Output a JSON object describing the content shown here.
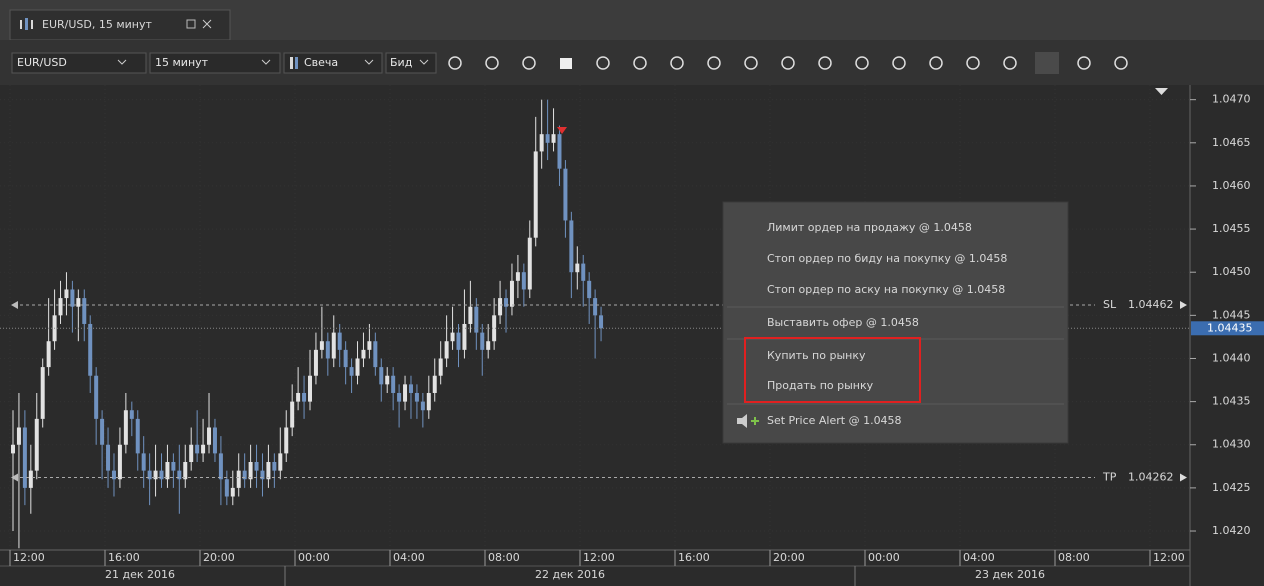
{
  "tab": {
    "title": "EUR/USD, 15 минут"
  },
  "toolbar": {
    "symbol": "EUR/USD",
    "period": "15 минут",
    "chart_type": "Свеча",
    "price_side": "Бид"
  },
  "chart": {
    "type": "candlestick",
    "up_color": "#e2e2e2",
    "down_color": "#7092c0",
    "ylim": [
      1.04178,
      1.04717
    ],
    "yticks": [
      {
        "value": 1.042,
        "label": "1.0420"
      },
      1.0425,
      {
        "value": 1.043,
        "label": "1.0430"
      },
      1.0435,
      {
        "value": 1.044,
        "label": "1.0440"
      },
      1.0445,
      {
        "value": 1.045,
        "label": "1.0450"
      },
      1.0455,
      {
        "value": 1.046,
        "label": "1.0460"
      },
      1.0465,
      {
        "value": 1.047,
        "label": "1.0470"
      }
    ],
    "candles": [
      [
        1.0429,
        1.0434,
        1.042,
        1.043
      ],
      [
        1.043,
        1.0436,
        1.0418,
        1.0432
      ],
      [
        1.0432,
        1.0434,
        1.0423,
        1.0425
      ],
      [
        1.0425,
        1.043,
        1.0422,
        1.0427
      ],
      [
        1.0427,
        1.0436,
        1.0426,
        1.0433
      ],
      [
        1.0433,
        1.044,
        1.0432,
        1.0439
      ],
      [
        1.0439,
        1.0447,
        1.0438,
        1.0442
      ],
      [
        1.0442,
        1.0448,
        1.0441,
        1.0445
      ],
      [
        1.0445,
        1.0449,
        1.0444,
        1.0447
      ],
      [
        1.0447,
        1.045,
        1.0445,
        1.0448
      ],
      [
        1.0448,
        1.0449,
        1.0443,
        1.0446
      ],
      [
        1.0446,
        1.0448,
        1.0442,
        1.0447
      ],
      [
        1.0447,
        1.0448,
        1.0442,
        1.0444
      ],
      [
        1.0444,
        1.0445,
        1.0436,
        1.0438
      ],
      [
        1.0438,
        1.0439,
        1.043,
        1.0433
      ],
      [
        1.0433,
        1.0434,
        1.0426,
        1.043
      ],
      [
        1.043,
        1.0432,
        1.0425,
        1.0427
      ],
      [
        1.0427,
        1.0429,
        1.0424,
        1.0426
      ],
      [
        1.0426,
        1.0432,
        1.0425,
        1.043
      ],
      [
        1.043,
        1.0436,
        1.0429,
        1.0434
      ],
      [
        1.0434,
        1.0435,
        1.0431,
        1.0433
      ],
      [
        1.0433,
        1.0434,
        1.0427,
        1.0429
      ],
      [
        1.0429,
        1.0431,
        1.0425,
        1.0427
      ],
      [
        1.0427,
        1.0429,
        1.0423,
        1.0426
      ],
      [
        1.0426,
        1.043,
        1.0424,
        1.0427
      ],
      [
        1.0427,
        1.0429,
        1.0425,
        1.0426
      ],
      [
        1.0426,
        1.043,
        1.0425,
        1.0428
      ],
      [
        1.0428,
        1.0429,
        1.0425,
        1.0427
      ],
      [
        1.0427,
        1.043,
        1.0422,
        1.0426
      ],
      [
        1.0426,
        1.043,
        1.0425,
        1.0428
      ],
      [
        1.0428,
        1.0432,
        1.0427,
        1.043
      ],
      [
        1.043,
        1.0434,
        1.0428,
        1.0429
      ],
      [
        1.0429,
        1.0433,
        1.0428,
        1.043
      ],
      [
        1.043,
        1.0436,
        1.0429,
        1.0432
      ],
      [
        1.0432,
        1.0433,
        1.0428,
        1.0429
      ],
      [
        1.0429,
        1.0431,
        1.0423,
        1.0426
      ],
      [
        1.0426,
        1.0427,
        1.0423,
        1.0424
      ],
      [
        1.0424,
        1.0427,
        1.0423,
        1.0425
      ],
      [
        1.0425,
        1.0429,
        1.0424,
        1.0427
      ],
      [
        1.0427,
        1.0429,
        1.0425,
        1.0426
      ],
      [
        1.0426,
        1.043,
        1.0425,
        1.0428
      ],
      [
        1.0428,
        1.043,
        1.0425,
        1.0427
      ],
      [
        1.0427,
        1.0429,
        1.0424,
        1.0426
      ],
      [
        1.0426,
        1.043,
        1.0425,
        1.0428
      ],
      [
        1.0428,
        1.0429,
        1.0425,
        1.0427
      ],
      [
        1.0427,
        1.0432,
        1.0426,
        1.0429
      ],
      [
        1.0429,
        1.0434,
        1.0428,
        1.0432
      ],
      [
        1.0432,
        1.0437,
        1.0431,
        1.0435
      ],
      [
        1.0435,
        1.0439,
        1.0434,
        1.0436
      ],
      [
        1.0436,
        1.0438,
        1.0433,
        1.0435
      ],
      [
        1.0435,
        1.0441,
        1.0434,
        1.0438
      ],
      [
        1.0438,
        1.0443,
        1.0437,
        1.0441
      ],
      [
        1.0441,
        1.0446,
        1.044,
        1.0442
      ],
      [
        1.0442,
        1.0443,
        1.0438,
        1.044
      ],
      [
        1.044,
        1.0445,
        1.0439,
        1.0443
      ],
      [
        1.0443,
        1.0444,
        1.0439,
        1.0441
      ],
      [
        1.0441,
        1.0442,
        1.0437,
        1.0439
      ],
      [
        1.0439,
        1.044,
        1.0436,
        1.0438
      ],
      [
        1.0438,
        1.0442,
        1.0437,
        1.044
      ],
      [
        1.044,
        1.0443,
        1.0439,
        1.0441
      ],
      [
        1.0441,
        1.0444,
        1.044,
        1.0442
      ],
      [
        1.0442,
        1.0443,
        1.0438,
        1.0439
      ],
      [
        1.0439,
        1.044,
        1.0435,
        1.0437
      ],
      [
        1.0437,
        1.0439,
        1.0436,
        1.0438
      ],
      [
        1.0438,
        1.0439,
        1.0434,
        1.0436
      ],
      [
        1.0436,
        1.0437,
        1.0432,
        1.0435
      ],
      [
        1.0435,
        1.0438,
        1.0434,
        1.0437
      ],
      [
        1.0437,
        1.0438,
        1.0433,
        1.0436
      ],
      [
        1.0436,
        1.0437,
        1.0433,
        1.0435
      ],
      [
        1.0435,
        1.0436,
        1.0432,
        1.0434
      ],
      [
        1.0434,
        1.0438,
        1.0433,
        1.0436
      ],
      [
        1.0436,
        1.044,
        1.0435,
        1.0438
      ],
      [
        1.0438,
        1.0442,
        1.0437,
        1.044
      ],
      [
        1.044,
        1.0445,
        1.0439,
        1.0442
      ],
      [
        1.0442,
        1.0446,
        1.0441,
        1.0443
      ],
      [
        1.0443,
        1.0444,
        1.0439,
        1.0441
      ],
      [
        1.0441,
        1.0448,
        1.044,
        1.0444
      ],
      [
        1.0444,
        1.0449,
        1.0443,
        1.0446
      ],
      [
        1.0446,
        1.0447,
        1.0441,
        1.0443
      ],
      [
        1.0443,
        1.0444,
        1.0438,
        1.0441
      ],
      [
        1.0441,
        1.0444,
        1.044,
        1.0442
      ],
      [
        1.0442,
        1.0447,
        1.0441,
        1.0445
      ],
      [
        1.0445,
        1.0449,
        1.0444,
        1.0447
      ],
      [
        1.0447,
        1.0448,
        1.0443,
        1.0446
      ],
      [
        1.0446,
        1.0451,
        1.0445,
        1.0449
      ],
      [
        1.0449,
        1.0452,
        1.0447,
        1.045
      ],
      [
        1.045,
        1.0451,
        1.0446,
        1.0448
      ],
      [
        1.0448,
        1.0456,
        1.0447,
        1.0454
      ],
      [
        1.0454,
        1.0468,
        1.0453,
        1.0464
      ],
      [
        1.0464,
        1.047,
        1.0462,
        1.0466
      ],
      [
        1.0466,
        1.047,
        1.0463,
        1.0465
      ],
      [
        1.0465,
        1.0469,
        1.0464,
        1.0466
      ],
      [
        1.0466,
        1.0467,
        1.046,
        1.0462
      ],
      [
        1.0462,
        1.0463,
        1.0454,
        1.0456
      ],
      [
        1.0456,
        1.0457,
        1.0447,
        1.045
      ],
      [
        1.045,
        1.0453,
        1.0448,
        1.0451
      ],
      [
        1.0451,
        1.0452,
        1.0446,
        1.0449
      ],
      [
        1.0449,
        1.045,
        1.0444,
        1.0447
      ],
      [
        1.0447,
        1.0448,
        1.044,
        1.0445
      ],
      [
        1.0445,
        1.0446,
        1.0442,
        1.04435
      ]
    ],
    "sl": {
      "label": "SL",
      "value": 1.04462
    },
    "tp": {
      "label": "TP",
      "value": 1.04262
    },
    "current_price": 1.04435,
    "time_labels": [
      "12:00",
      "16:00",
      "20:00",
      "00:00",
      "04:00",
      "08:00",
      "12:00",
      "16:00",
      "20:00",
      "00:00",
      "04:00",
      "08:00",
      "12:00"
    ],
    "date_labels": [
      "21 дек 2016",
      "22 дек 2016",
      "23 дек 2016"
    ]
  },
  "context_menu": {
    "items": [
      "Лимит ордер на продажу @ 1.0458",
      "Стоп ордер по биду на покупку @ 1.0458",
      "Стоп ордер по аску на покупку @ 1.0458",
      "Выставить офер @ 1.0458",
      "Купить по рынку",
      "Продать по рынку",
      "Set Price Alert @ 1.0458"
    ]
  }
}
